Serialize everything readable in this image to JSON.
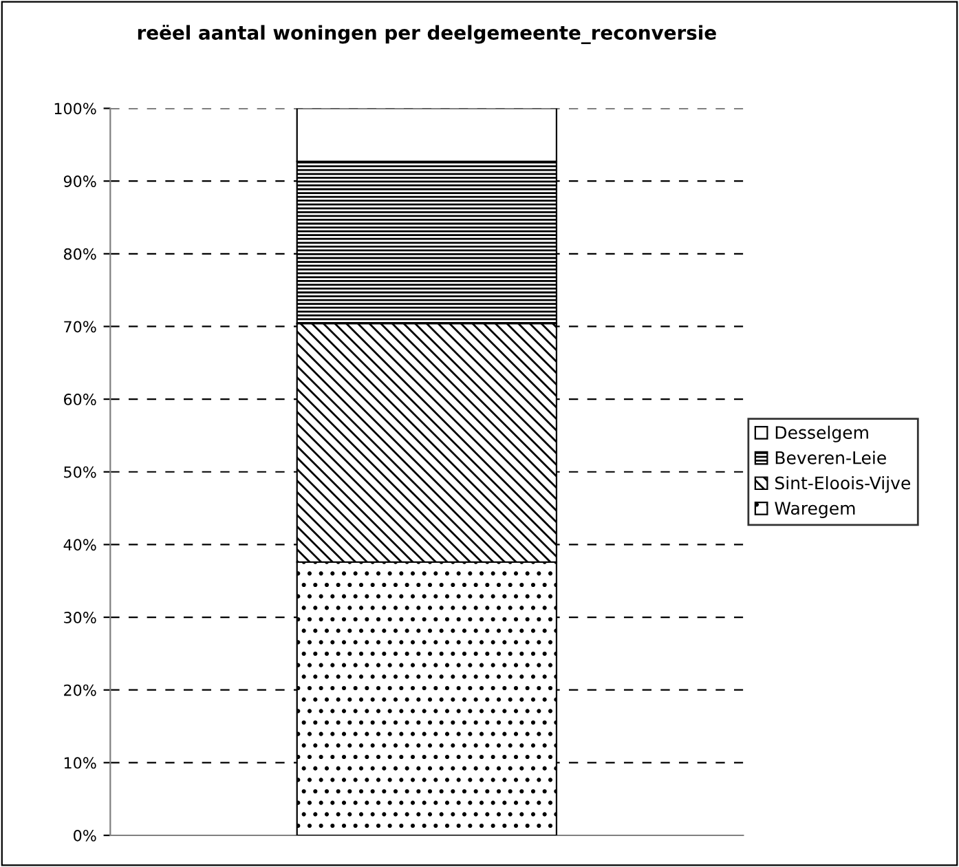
{
  "chart_data": {
    "type": "bar",
    "title": "reëel aantal woningen per deelgemeente_reconversie",
    "categories": [
      null
    ],
    "stacked": true,
    "series": [
      {
        "name": "Waregem",
        "color": "#000000",
        "values": [
          37.6
        ]
      },
      {
        "name": "Sint-Eloois-Vijve",
        "color": "#000000",
        "values": [
          32.8
        ]
      },
      {
        "name": "Beveren-Leie",
        "color": "#000000",
        "values": [
          22.3
        ]
      },
      {
        "name": "Desselgem",
        "color": "#ffffff",
        "values": [
          7.3
        ]
      }
    ],
    "ylim": [
      0,
      100
    ],
    "yticks": [
      {
        "value": 0,
        "label": "0%"
      },
      {
        "value": 10,
        "label": "10%"
      },
      {
        "value": 20,
        "label": "20%"
      },
      {
        "value": 30,
        "label": "30%"
      },
      {
        "value": 40,
        "label": "40%"
      },
      {
        "value": 50,
        "label": "50%"
      },
      {
        "value": 60,
        "label": "60%"
      },
      {
        "value": 70,
        "label": "70%"
      },
      {
        "value": 80,
        "label": "80%"
      },
      {
        "value": 90,
        "label": "90%"
      },
      {
        "value": 100,
        "label": "100%"
      }
    ],
    "grid": "y",
    "legend": "right"
  }
}
